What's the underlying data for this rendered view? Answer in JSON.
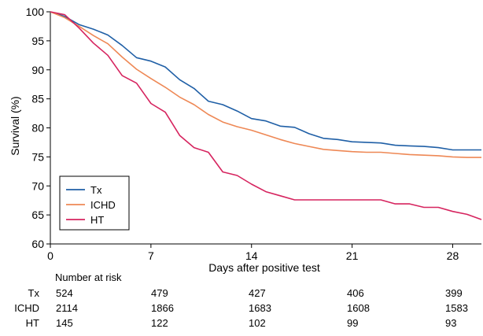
{
  "chart_data": {
    "type": "line",
    "xlabel": "Days after positive test",
    "ylabel": "Survival (%)",
    "xlim": [
      0,
      30
    ],
    "ylim": [
      60,
      100
    ],
    "xticks": [
      0,
      7,
      14,
      21,
      28
    ],
    "yticks": [
      60,
      65,
      70,
      75,
      80,
      85,
      90,
      95,
      100
    ],
    "grid": false,
    "legend_position": "bottom-left",
    "series": [
      {
        "name": "Tx",
        "color": "#1f5fa6",
        "x": [
          0,
          1,
          2,
          3,
          4,
          5,
          6,
          7,
          8,
          9,
          10,
          11,
          12,
          13,
          14,
          15,
          16,
          17,
          18,
          19,
          20,
          21,
          22,
          23,
          24,
          25,
          26,
          27,
          28,
          29,
          30
        ],
        "y": [
          100,
          99.2,
          97.8,
          97.0,
          96.0,
          94.2,
          92.1,
          91.5,
          90.5,
          88.3,
          86.8,
          84.6,
          84.0,
          82.9,
          81.6,
          81.2,
          80.3,
          80.1,
          79.0,
          78.2,
          78.0,
          77.6,
          77.5,
          77.4,
          77.0,
          76.9,
          76.8,
          76.6,
          76.2,
          76.2,
          76.2
        ]
      },
      {
        "name": "ICHD",
        "color": "#ee8855",
        "x": [
          0,
          1,
          2,
          3,
          4,
          5,
          6,
          7,
          8,
          9,
          10,
          11,
          12,
          13,
          14,
          15,
          16,
          17,
          18,
          19,
          20,
          21,
          22,
          23,
          24,
          25,
          26,
          27,
          28,
          29,
          30
        ],
        "y": [
          100,
          99.0,
          97.5,
          95.9,
          94.5,
          92.2,
          90.1,
          88.5,
          87.0,
          85.3,
          84.0,
          82.3,
          81.0,
          80.2,
          79.6,
          78.8,
          78.0,
          77.3,
          76.8,
          76.3,
          76.1,
          75.9,
          75.8,
          75.8,
          75.6,
          75.4,
          75.3,
          75.2,
          75.0,
          74.9,
          74.9
        ]
      },
      {
        "name": "HT",
        "color": "#d6245f",
        "x": [
          0,
          1,
          2,
          3,
          4,
          5,
          6,
          7,
          8,
          9,
          10,
          11,
          12,
          13,
          14,
          15,
          16,
          17,
          18,
          19,
          20,
          21,
          22,
          23,
          24,
          25,
          26,
          27,
          28,
          29,
          30
        ],
        "y": [
          100,
          99.5,
          97.2,
          94.6,
          92.5,
          89.0,
          87.7,
          84.2,
          82.7,
          78.7,
          76.6,
          75.8,
          72.4,
          71.8,
          70.3,
          69.0,
          68.3,
          67.6,
          67.6,
          67.6,
          67.6,
          67.6,
          67.6,
          67.6,
          66.9,
          66.9,
          66.3,
          66.3,
          65.6,
          65.1,
          64.2
        ]
      }
    ],
    "risk_table": {
      "title": "Number at risk",
      "timepoints": [
        0,
        7,
        14,
        21,
        28
      ],
      "rows": [
        {
          "label": "Tx",
          "values": [
            "524",
            "479",
            "427",
            "406",
            "399"
          ]
        },
        {
          "label": "ICHD",
          "values": [
            "2114",
            "1866",
            "1683",
            "1608",
            "1583"
          ]
        },
        {
          "label": "HT",
          "values": [
            "145",
            "122",
            "102",
            "99",
            "93"
          ]
        }
      ]
    }
  }
}
